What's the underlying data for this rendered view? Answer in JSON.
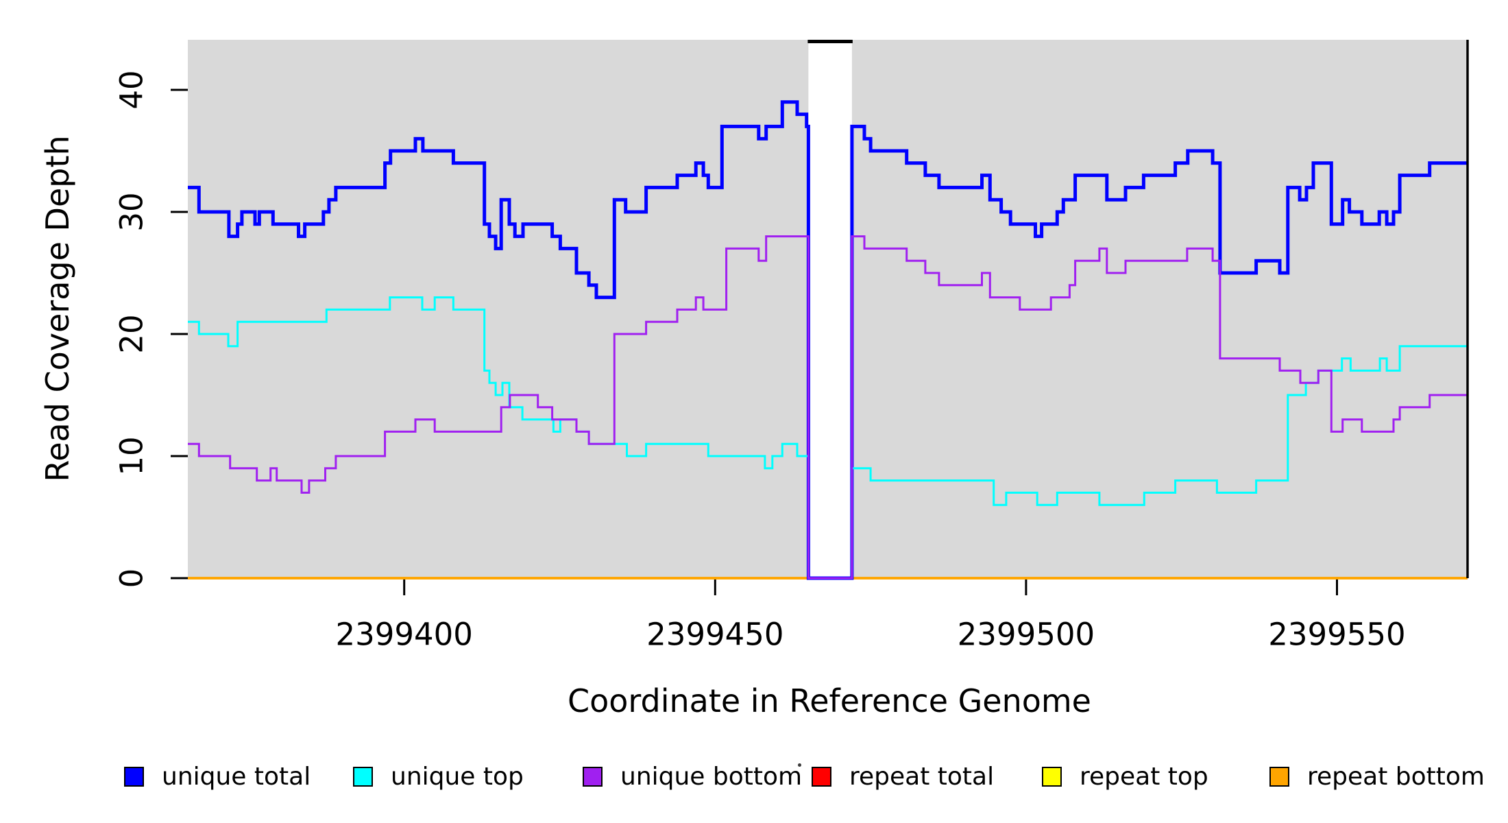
{
  "figure": {
    "title": "",
    "xlabel": "Coordinate in Reference Genome",
    "ylabel": "Read Coverage Depth"
  },
  "legend": {
    "items": [
      {
        "label": "unique total",
        "color": "#0000FF"
      },
      {
        "label": "unique top",
        "color": "#00FFFF"
      },
      {
        "label": "unique bottom",
        "color": "#A020F0"
      },
      {
        "label": "repeat total",
        "color": "#FF0000"
      },
      {
        "label": "repeat top",
        "color": "#FFFF00"
      },
      {
        "label": "repeat bottom",
        "color": "#FFA500"
      }
    ],
    "x_positions": [
      181,
      515,
      850,
      1184,
      1520,
      1852
    ],
    "stray_dot": "·"
  },
  "chart_data": {
    "type": "line",
    "subtype": "step",
    "title": "",
    "xlabel": "Coordinate in Reference Genome",
    "ylabel": "Read Coverage Depth",
    "xlim": [
      2399365.2,
      2399571.0
    ],
    "ylim": [
      0,
      44.1
    ],
    "x_ticks": [
      2399400,
      2399450,
      2399500,
      2399550
    ],
    "y_ticks": [
      0,
      10,
      20,
      30,
      40
    ],
    "grid": false,
    "legend_position": "bottom",
    "page_bg": "#ffffff",
    "plot_bg": "#d9d9d9",
    "axis_color": "#000000",
    "masked_gap": {
      "x_start": 2399465.0,
      "x_end": 2399472.0,
      "fill": "#ffffff",
      "top_border": "#000000"
    },
    "right_edge_line": {
      "x": 2399571.0,
      "color": "#000000"
    },
    "series": [
      {
        "name": "repeat total",
        "color": "#FF0000",
        "width": 3.5,
        "steps": [
          [
            2399365.2,
            0
          ]
        ]
      },
      {
        "name": "repeat top",
        "color": "#FFFF00",
        "width": 3.5,
        "steps": [
          [
            2399365.2,
            0
          ]
        ]
      },
      {
        "name": "repeat bottom",
        "color": "#FFA500",
        "width": 3.5,
        "steps": [
          [
            2399365.2,
            0
          ]
        ]
      },
      {
        "name": "unique total",
        "color": "#0000FF",
        "width": 5,
        "steps": [
          [
            2399365.2,
            32
          ],
          [
            2399367,
            30
          ],
          [
            2399371.8,
            28
          ],
          [
            2399373.2,
            29
          ],
          [
            2399373.9,
            30
          ],
          [
            2399376,
            29
          ],
          [
            2399376.7,
            30
          ],
          [
            2399378.9,
            29
          ],
          [
            2399383,
            28
          ],
          [
            2399384,
            29
          ],
          [
            2399387,
            30
          ],
          [
            2399387.9,
            31
          ],
          [
            2399389,
            32
          ],
          [
            2399396.9,
            34
          ],
          [
            2399397.8,
            35
          ],
          [
            2399401.8,
            36
          ],
          [
            2399403,
            35
          ],
          [
            2399407.9,
            34
          ],
          [
            2399412.9,
            29
          ],
          [
            2399413.7,
            28
          ],
          [
            2399414.7,
            27
          ],
          [
            2399415.6,
            31
          ],
          [
            2399416.9,
            29
          ],
          [
            2399417.8,
            28
          ],
          [
            2399419.1,
            29
          ],
          [
            2399423.8,
            28
          ],
          [
            2399425.1,
            27
          ],
          [
            2399427.7,
            25
          ],
          [
            2399429.7,
            24
          ],
          [
            2399430.9,
            23
          ],
          [
            2399433.8,
            31
          ],
          [
            2399435.6,
            30
          ],
          [
            2399438.9,
            32
          ],
          [
            2399443.9,
            33
          ],
          [
            2399446.9,
            34
          ],
          [
            2399448.1,
            33
          ],
          [
            2399448.9,
            32
          ],
          [
            2399451.1,
            37
          ],
          [
            2399457,
            36
          ],
          [
            2399458.2,
            37
          ],
          [
            2399460.8,
            39
          ],
          [
            2399463.2,
            38
          ],
          [
            2399464.7,
            37
          ],
          [
            2399465,
            0
          ],
          [
            2399472,
            37
          ],
          [
            2399474,
            36
          ],
          [
            2399475,
            35
          ],
          [
            2399480.8,
            34
          ],
          [
            2399483.8,
            33
          ],
          [
            2399486,
            32
          ],
          [
            2399492.9,
            33
          ],
          [
            2399494.2,
            31
          ],
          [
            2399496,
            30
          ],
          [
            2399497.5,
            29
          ],
          [
            2399501.5,
            28
          ],
          [
            2399502.5,
            29
          ],
          [
            2399505,
            30
          ],
          [
            2399506,
            31
          ],
          [
            2399507.9,
            33
          ],
          [
            2399513,
            31
          ],
          [
            2399516,
            32
          ],
          [
            2399518.9,
            33
          ],
          [
            2399524,
            34
          ],
          [
            2399526,
            35
          ],
          [
            2399530,
            34
          ],
          [
            2399531.2,
            25
          ],
          [
            2399537,
            26
          ],
          [
            2399540.8,
            25
          ],
          [
            2399542.1,
            32
          ],
          [
            2399544,
            31
          ],
          [
            2399545.1,
            32
          ],
          [
            2399546.2,
            34
          ],
          [
            2399549.1,
            29
          ],
          [
            2399550.9,
            31
          ],
          [
            2399552,
            30
          ],
          [
            2399554,
            29
          ],
          [
            2399556.8,
            30
          ],
          [
            2399558,
            29
          ],
          [
            2399559.1,
            30
          ],
          [
            2399560.1,
            33
          ],
          [
            2399564.9,
            34
          ]
        ]
      },
      {
        "name": "unique top",
        "color": "#00FFFF",
        "width": 3,
        "steps": [
          [
            2399365.2,
            21
          ],
          [
            2399367,
            20
          ],
          [
            2399371.7,
            19
          ],
          [
            2399373.2,
            21
          ],
          [
            2399387.5,
            22
          ],
          [
            2399397.7,
            23
          ],
          [
            2399402.9,
            22
          ],
          [
            2399404.9,
            23
          ],
          [
            2399407.9,
            22
          ],
          [
            2399412.9,
            17
          ],
          [
            2399413.7,
            16
          ],
          [
            2399414.7,
            15
          ],
          [
            2399415.8,
            16
          ],
          [
            2399416.9,
            14
          ],
          [
            2399419,
            13
          ],
          [
            2399424,
            12
          ],
          [
            2399425.1,
            13
          ],
          [
            2399427.7,
            12
          ],
          [
            2399429.7,
            11
          ],
          [
            2399435.8,
            10
          ],
          [
            2399438.9,
            11
          ],
          [
            2399448.9,
            10
          ],
          [
            2399458,
            9
          ],
          [
            2399459.2,
            10
          ],
          [
            2399460.8,
            11
          ],
          [
            2399463.2,
            10
          ],
          [
            2399465,
            0
          ],
          [
            2399472,
            9
          ],
          [
            2399475,
            8
          ],
          [
            2399494.8,
            6
          ],
          [
            2399496.8,
            7
          ],
          [
            2399501.8,
            6
          ],
          [
            2399505,
            7
          ],
          [
            2399511.8,
            6
          ],
          [
            2399519,
            7
          ],
          [
            2399524,
            8
          ],
          [
            2399530.7,
            7
          ],
          [
            2399537,
            8
          ],
          [
            2399542.1,
            15
          ],
          [
            2399545,
            16
          ],
          [
            2399547,
            17
          ],
          [
            2399550.8,
            18
          ],
          [
            2399552.2,
            17
          ],
          [
            2399556.9,
            18
          ],
          [
            2399558,
            17
          ],
          [
            2399560.1,
            19
          ]
        ]
      },
      {
        "name": "unique bottom",
        "color": "#A020F0",
        "width": 3,
        "steps": [
          [
            2399365.2,
            11
          ],
          [
            2399367,
            10
          ],
          [
            2399372,
            9
          ],
          [
            2399376.3,
            8
          ],
          [
            2399378.5,
            9
          ],
          [
            2399379.5,
            8
          ],
          [
            2399383.5,
            7
          ],
          [
            2399384.7,
            8
          ],
          [
            2399387.3,
            9
          ],
          [
            2399389,
            10
          ],
          [
            2399396.9,
            12
          ],
          [
            2399401.8,
            13
          ],
          [
            2399404.9,
            12
          ],
          [
            2399415.6,
            14
          ],
          [
            2399417,
            15
          ],
          [
            2399421.5,
            14
          ],
          [
            2399423.8,
            13
          ],
          [
            2399427.7,
            12
          ],
          [
            2399429.7,
            11
          ],
          [
            2399433.8,
            20
          ],
          [
            2399438.9,
            21
          ],
          [
            2399443.9,
            22
          ],
          [
            2399446.9,
            23
          ],
          [
            2399448.1,
            22
          ],
          [
            2399451.8,
            27
          ],
          [
            2399457,
            26
          ],
          [
            2399458.2,
            28
          ],
          [
            2399465,
            0
          ],
          [
            2399472,
            28
          ],
          [
            2399474,
            27
          ],
          [
            2399480.8,
            26
          ],
          [
            2399483.8,
            25
          ],
          [
            2399486,
            24
          ],
          [
            2399492.9,
            25
          ],
          [
            2399494.2,
            23
          ],
          [
            2399499,
            22
          ],
          [
            2399504,
            23
          ],
          [
            2399507,
            24
          ],
          [
            2399507.9,
            26
          ],
          [
            2399511.8,
            27
          ],
          [
            2399513,
            25
          ],
          [
            2399516,
            26
          ],
          [
            2399525.9,
            27
          ],
          [
            2399530,
            26
          ],
          [
            2399531.2,
            18
          ],
          [
            2399540.8,
            17
          ],
          [
            2399544.1,
            16
          ],
          [
            2399547,
            17
          ],
          [
            2399549.1,
            12
          ],
          [
            2399550.9,
            13
          ],
          [
            2399554,
            12
          ],
          [
            2399559.1,
            13
          ],
          [
            2399560.1,
            14
          ],
          [
            2399564.9,
            15
          ]
        ]
      }
    ]
  }
}
